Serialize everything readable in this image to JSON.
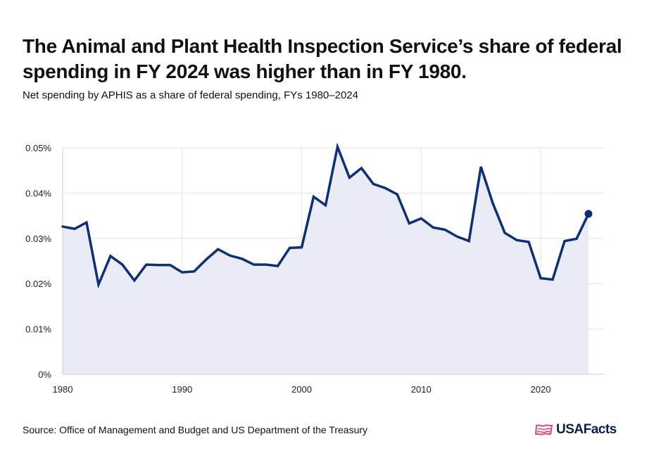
{
  "title": "The Animal and Plant Health Inspection Service’s share of federal spending in FY 2024 was higher than in FY 1980.",
  "subtitle": "Net spending by APHIS as a share of federal spending, FYs 1980–2024",
  "source": "Source: Office of Management and Budget and US Department of the Treasury",
  "logo_text": "USAFacts",
  "colors": {
    "line": "#0b2f7a",
    "area": "#e9ebf5",
    "grid": "#e6e6e6",
    "logo_icon": "#e0437f"
  },
  "chart_data": {
    "type": "line",
    "title": "",
    "xlabel": "",
    "ylabel": "",
    "xlim": [
      1980,
      2025.3
    ],
    "ylim": [
      0,
      0.05
    ],
    "x_ticks": [
      1980,
      1990,
      2000,
      2010,
      2020
    ],
    "x_tick_labels": [
      "1980",
      "1990",
      "2000",
      "2010",
      "2020"
    ],
    "y_ticks": [
      0,
      0.01,
      0.02,
      0.03,
      0.04,
      0.05
    ],
    "y_tick_labels": [
      "0%",
      "0.01%",
      "0.02%",
      "0.03%",
      "0.04%",
      "0.05%"
    ],
    "grid": true,
    "area_fill": true,
    "highlight_last_point": true,
    "x": [
      1980,
      1981,
      1982,
      1983,
      1984,
      1985,
      1986,
      1987,
      1988,
      1989,
      1990,
      1991,
      1992,
      1993,
      1994,
      1995,
      1996,
      1997,
      1998,
      1999,
      2000,
      2001,
      2002,
      2003,
      2004,
      2005,
      2006,
      2007,
      2008,
      2009,
      2010,
      2011,
      2012,
      2013,
      2014,
      2015,
      2016,
      2017,
      2018,
      2019,
      2020,
      2021,
      2022,
      2023,
      2024
    ],
    "series": [
      {
        "values": [
          0.0326,
          0.0321,
          0.0335,
          0.0198,
          0.0261,
          0.0242,
          0.0207,
          0.0242,
          0.0241,
          0.0241,
          0.0225,
          0.0227,
          0.0253,
          0.0276,
          0.0262,
          0.0255,
          0.0242,
          0.0242,
          0.0239,
          0.0279,
          0.028,
          0.0392,
          0.0373,
          0.0502,
          0.0434,
          0.0455,
          0.042,
          0.0411,
          0.0397,
          0.0333,
          0.0344,
          0.0324,
          0.0319,
          0.0304,
          0.0294,
          0.0458,
          0.0377,
          0.0312,
          0.0296,
          0.0292,
          0.0212,
          0.0209,
          0.0294,
          0.0299,
          0.0354
        ]
      }
    ]
  }
}
